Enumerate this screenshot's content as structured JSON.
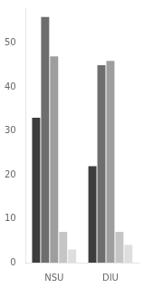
{
  "chart_data": {
    "type": "bar",
    "categories": [
      "NSU",
      "DIU"
    ],
    "series": [
      {
        "color": "#3d3d3d",
        "values": [
          33,
          22
        ]
      },
      {
        "color": "#6e6e6e",
        "values": [
          56,
          45
        ]
      },
      {
        "color": "#9e9e9e",
        "values": [
          47,
          46
        ]
      },
      {
        "color": "#c5c5c5",
        "values": [
          7,
          7
        ]
      },
      {
        "color": "#dedede",
        "values": [
          3,
          4
        ]
      }
    ],
    "ylim": [
      0,
      58
    ],
    "yticks": [
      0,
      10,
      20,
      30,
      40,
      50
    ],
    "grid": false
  }
}
